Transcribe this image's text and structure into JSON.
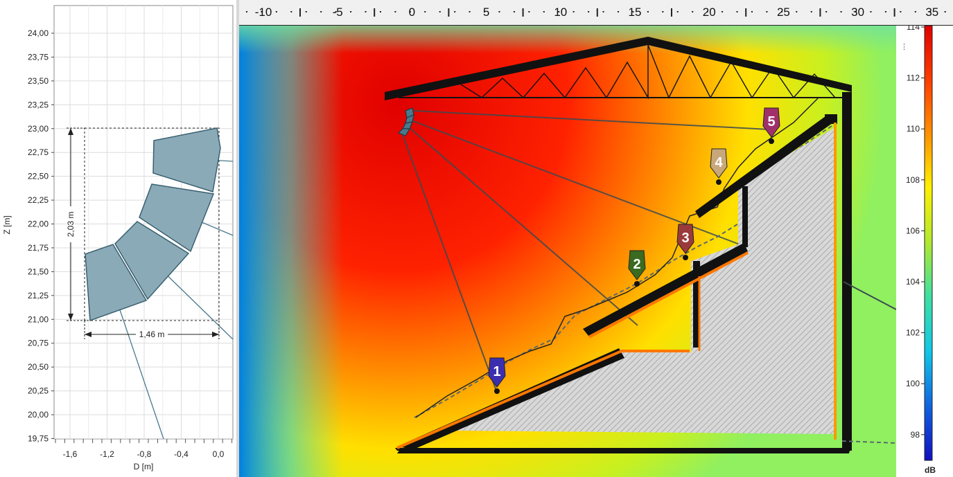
{
  "left_chart": {
    "x_label": "D [m]",
    "y_label": "Z [m]",
    "x_ticks": [
      "-1,6",
      "-1,2",
      "-0,8",
      "-0,4",
      "0,0"
    ],
    "y_ticks": [
      "24,00",
      "23,75",
      "23,50",
      "23,25",
      "23,00",
      "22,75",
      "22,50",
      "22,25",
      "22,00",
      "21,75",
      "21,50",
      "21,25",
      "21,00",
      "20,75",
      "20,50",
      "20,25",
      "20,00",
      "19,75"
    ],
    "height_dimension": "2,03 m",
    "width_dimension": "1,46 m",
    "box_fill": "#8aaab8",
    "box_stroke": "#3a6070"
  },
  "ruler": {
    "labels": [
      "-10",
      "-5",
      "0",
      "5",
      "10",
      "15",
      "20",
      "25",
      "30",
      "35"
    ]
  },
  "field": {
    "markers": [
      {
        "label": "1",
        "color": "#3b2fb0"
      },
      {
        "label": "2",
        "color": "#3a6b20"
      },
      {
        "label": "3",
        "color": "#9a3a3a"
      },
      {
        "label": "4",
        "color": "#c8a87a"
      },
      {
        "label": "5",
        "color": "#a0306a"
      }
    ]
  },
  "colorbar": {
    "ticks": [
      "114",
      "112",
      "110",
      "108",
      "106",
      "104",
      "102",
      "100",
      "98"
    ],
    "unit": "dB"
  }
}
